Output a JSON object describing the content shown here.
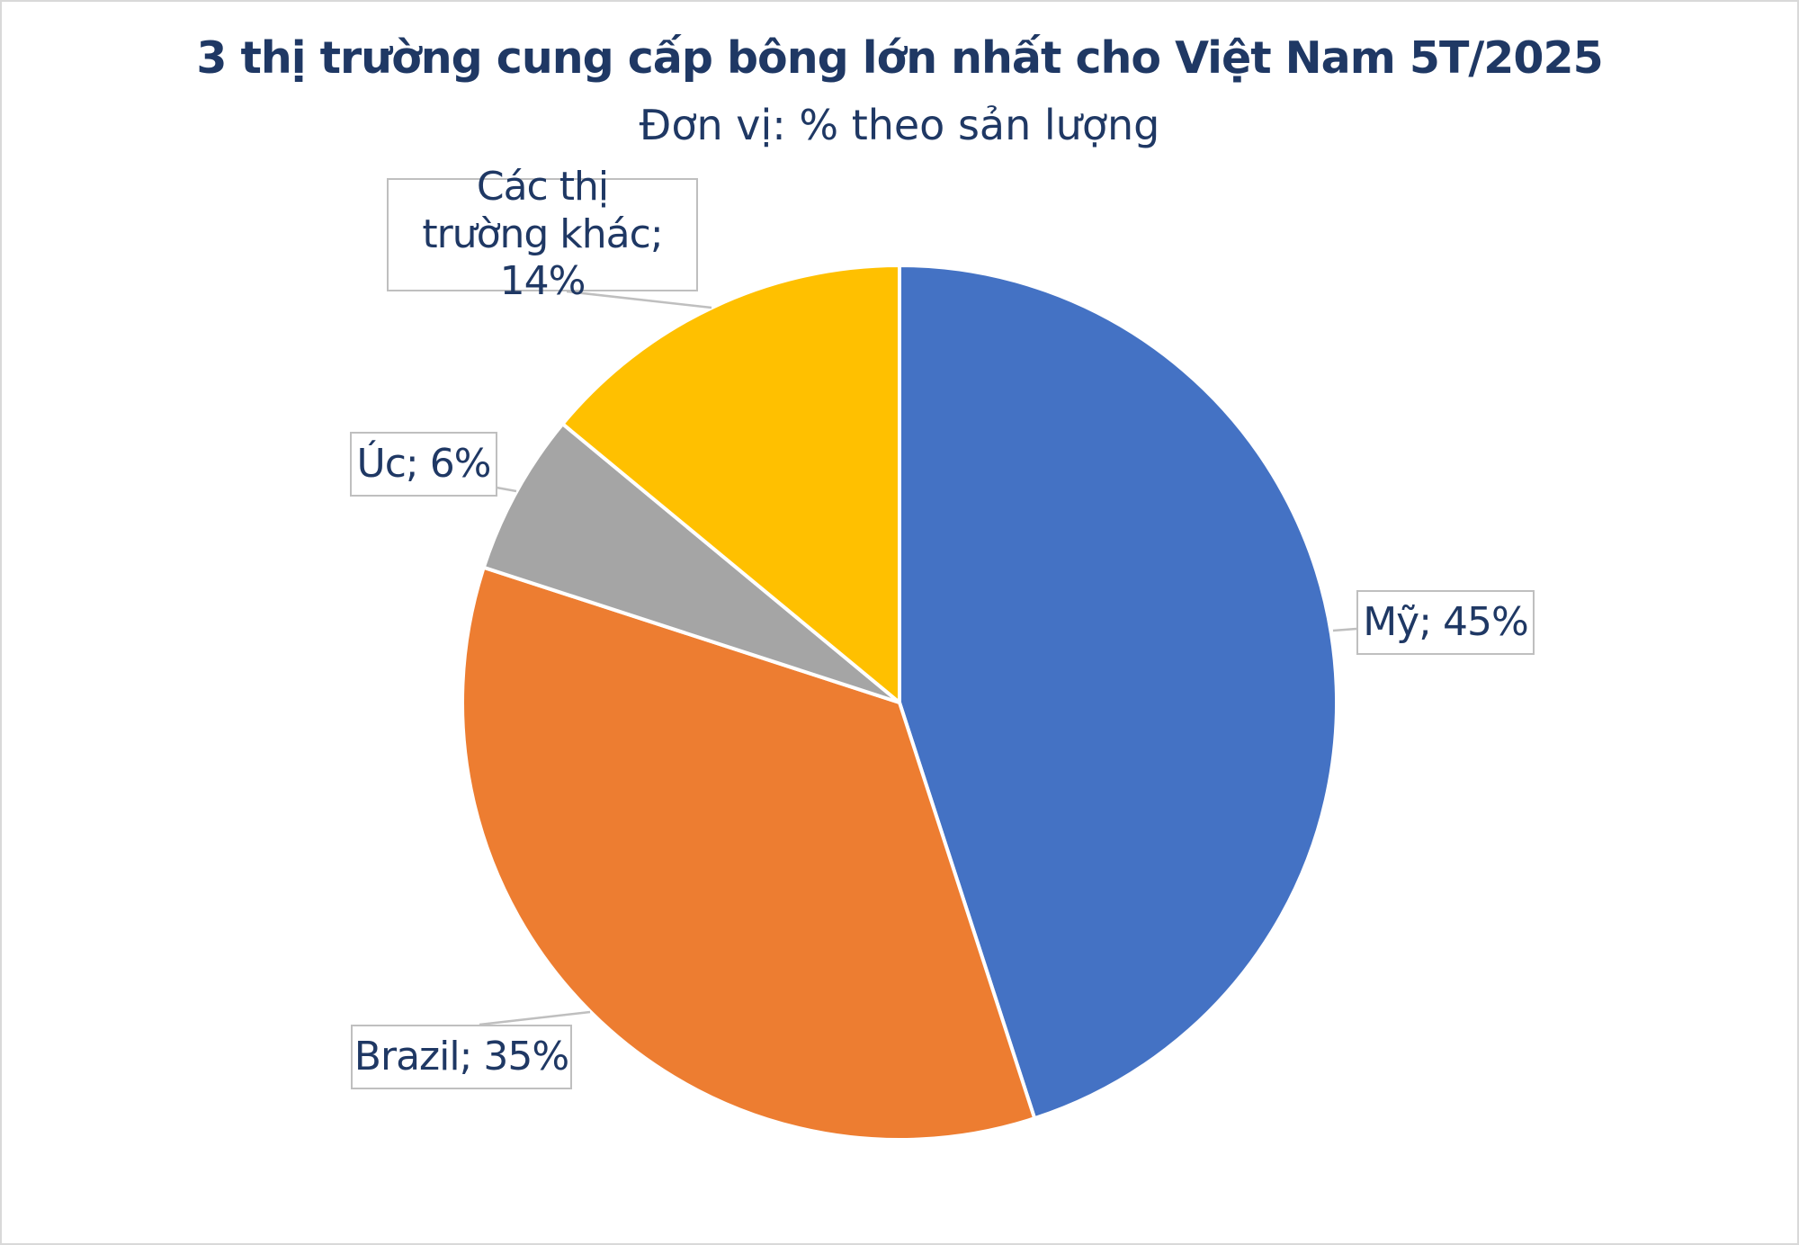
{
  "chart_data": {
    "type": "pie",
    "title": "3 thị trường cung cấp bông lớn nhất cho Việt Nam 5T/2025",
    "subtitle": "Đơn vị: % theo sản lượng",
    "start_angle": "12 o'clock, clockwise",
    "slices": [
      {
        "name": "Mỹ",
        "value": 45,
        "label": "Mỹ; 45%",
        "color": "#4472c4"
      },
      {
        "name": "Brazil",
        "value": 35,
        "label": "Brazil; 35%",
        "color": "#ed7d31"
      },
      {
        "name": "Úc",
        "value": 6,
        "label": "Úc; 6%",
        "color": "#a5a5a5"
      },
      {
        "name": "Các thị trường khác",
        "value": 14,
        "label": "Các thị trường khác; 14%",
        "color": "#ffc000"
      }
    ]
  }
}
